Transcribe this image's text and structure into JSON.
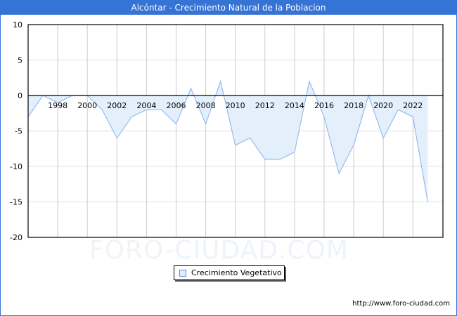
{
  "header": {
    "title": "Alcóntar - Crecimiento Natural de la Poblacion"
  },
  "legend": {
    "label": "Crecimiento Vegetativo"
  },
  "footer": {
    "url": "http://www.foro-ciudad.com"
  },
  "watermark": {
    "part1": "FORO-",
    "part2": "CIUDAD.COM"
  },
  "colors": {
    "accent": "#3573d6",
    "line": "#99bbee",
    "fill": "#e3f0fc"
  },
  "chart_data": {
    "type": "area",
    "title": "Alcóntar - Crecimiento Natural de la Poblacion",
    "xlabel": "",
    "ylabel": "",
    "ylim": [
      -20,
      10
    ],
    "yticks": [
      10,
      5,
      0,
      -5,
      -10,
      -15,
      -20
    ],
    "xtick_labels": [
      "1998",
      "2000",
      "2002",
      "2004",
      "2006",
      "2008",
      "2010",
      "2012",
      "2014",
      "2016",
      "2018",
      "2020",
      "2022"
    ],
    "grid": true,
    "legend_position": "bottom",
    "x": [
      1996,
      1997,
      1998,
      1999,
      2000,
      2001,
      2002,
      2003,
      2004,
      2005,
      2006,
      2007,
      2008,
      2009,
      2010,
      2011,
      2012,
      2013,
      2014,
      2015,
      2016,
      2017,
      2018,
      2019,
      2020,
      2021,
      2022,
      2023
    ],
    "series": [
      {
        "name": "Crecimiento Vegetativo",
        "values": [
          -3,
          0,
          -1,
          0,
          0,
          -2,
          -6,
          -3,
          -2,
          -2,
          -4,
          1,
          -4,
          2,
          -7,
          -6,
          -9,
          -9,
          -8,
          2,
          -3,
          -11,
          -7,
          0,
          -6,
          -2,
          -3,
          -15
        ]
      }
    ]
  }
}
